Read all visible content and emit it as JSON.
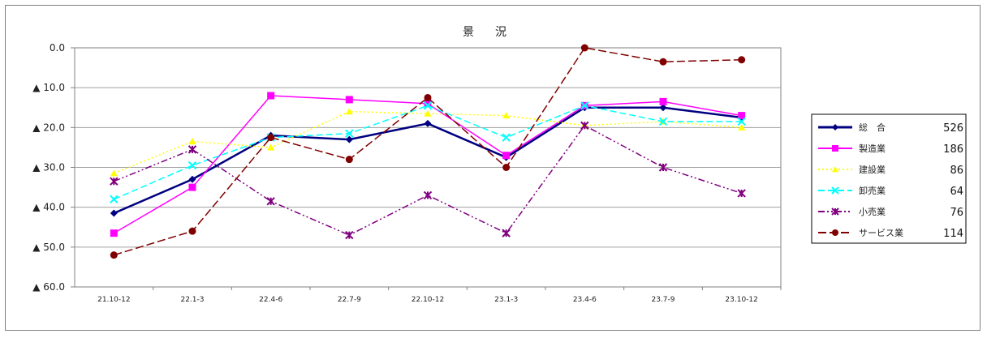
{
  "chart_data": {
    "type": "line",
    "title": "景　況",
    "xlabel": "",
    "ylabel": "",
    "ylim": [
      -60,
      0
    ],
    "grid": true,
    "legend_position": "right",
    "y_tick_labels": [
      "0.0",
      "▲ 10.0",
      "▲ 20.0",
      "▲ 30.0",
      "▲ 40.0",
      "▲ 50.0",
      "▲ 60.0"
    ],
    "y_tick_values": [
      0,
      -10,
      -20,
      -30,
      -40,
      -50,
      -60
    ],
    "categories": [
      "21.10-12",
      "22.1-3",
      "22.4-6",
      "22.7-9",
      "22.10-12",
      "23.1-3",
      "23.4-6",
      "23.7-9",
      "23.10-12"
    ],
    "series": [
      {
        "name": "総　合",
        "count": "526",
        "color": "#000080",
        "marker": "diamond",
        "dash": "",
        "width": 2.5,
        "values": [
          -41.5,
          -33,
          -22,
          -23,
          -19,
          -27.5,
          -15,
          -15,
          -17.5
        ]
      },
      {
        "name": "製造業",
        "count": "186",
        "color": "#ff00ff",
        "marker": "square",
        "dash": "",
        "width": 1.5,
        "values": [
          -46.5,
          -35,
          -12,
          -13,
          -14,
          -27,
          -14.5,
          -13.5,
          -17
        ]
      },
      {
        "name": "建設業",
        "count": "86",
        "color": "#ffff00",
        "marker": "triangle",
        "dash": "2,3",
        "width": 1.5,
        "values": [
          -31.5,
          -23.5,
          -25,
          -16,
          -16.5,
          -17,
          -19.5,
          -18.5,
          -20
        ]
      },
      {
        "name": "卸売業",
        "count": "64",
        "color": "#00ffff",
        "marker": "x",
        "dash": "8,4",
        "width": 1.5,
        "values": [
          -38,
          -29.5,
          -22.5,
          -21.5,
          -14.5,
          -22.5,
          -14.5,
          -18.5,
          -18.5
        ]
      },
      {
        "name": "小売業",
        "count": "76",
        "color": "#800080",
        "marker": "star",
        "dash": "8,3,2,3,2,3",
        "width": 1.5,
        "values": [
          -33.5,
          -25.5,
          -38.5,
          -47,
          -37,
          -46.5,
          -19.5,
          -30,
          -36.5
        ]
      },
      {
        "name": "サービス業",
        "count": "114",
        "color": "#800000",
        "marker": "circle",
        "dash": "10,4",
        "width": 1.5,
        "values": [
          -52,
          -46,
          -22.5,
          -28,
          -12.5,
          -30,
          0,
          -3.5,
          -3
        ]
      }
    ]
  }
}
